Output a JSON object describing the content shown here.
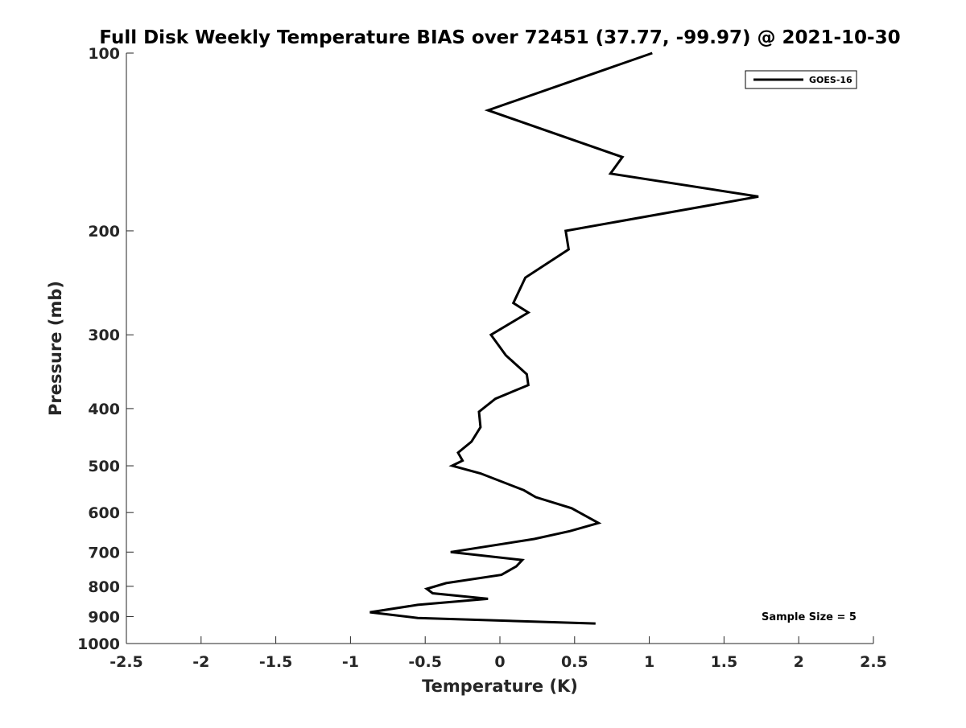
{
  "chart_data": {
    "type": "line",
    "title": "Full Disk Weekly Temperature BIAS over 72451 (37.77, -99.97) @ 2021-10-30",
    "xlabel": "Temperature (K)",
    "ylabel": "Pressure (mb)",
    "xlim": [
      -2.5,
      2.5
    ],
    "ylim": [
      100,
      1000
    ],
    "yscale": "log",
    "yreversed": true,
    "grid": false,
    "legend_position": "top-right",
    "x_ticks": [
      "-2.5",
      "-2",
      "-1.5",
      "-1",
      "-0.5",
      "0",
      "0.5",
      "1",
      "1.5",
      "2",
      "2.5"
    ],
    "y_ticks": [
      "100",
      "200",
      "300",
      "400",
      "500",
      "600",
      "700",
      "800",
      "900",
      "1000"
    ],
    "annotation": "Sample Size = 5",
    "series": [
      {
        "name": "GOES-16",
        "color": "#000000",
        "points": [
          {
            "x": 1.02,
            "y": 100
          },
          {
            "x": -0.08,
            "y": 125
          },
          {
            "x": 0.82,
            "y": 150
          },
          {
            "x": 0.74,
            "y": 160
          },
          {
            "x": 1.73,
            "y": 175
          },
          {
            "x": 0.44,
            "y": 200
          },
          {
            "x": 0.46,
            "y": 215
          },
          {
            "x": 0.17,
            "y": 240
          },
          {
            "x": 0.09,
            "y": 265
          },
          {
            "x": 0.19,
            "y": 275
          },
          {
            "x": -0.06,
            "y": 300
          },
          {
            "x": 0.04,
            "y": 325
          },
          {
            "x": 0.18,
            "y": 350
          },
          {
            "x": 0.19,
            "y": 365
          },
          {
            "x": -0.03,
            "y": 385
          },
          {
            "x": -0.14,
            "y": 405
          },
          {
            "x": -0.13,
            "y": 430
          },
          {
            "x": -0.19,
            "y": 455
          },
          {
            "x": -0.28,
            "y": 475
          },
          {
            "x": -0.25,
            "y": 490
          },
          {
            "x": -0.32,
            "y": 500
          },
          {
            "x": -0.13,
            "y": 515
          },
          {
            "x": 0.16,
            "y": 550
          },
          {
            "x": 0.24,
            "y": 565
          },
          {
            "x": 0.48,
            "y": 590
          },
          {
            "x": 0.66,
            "y": 625
          },
          {
            "x": 0.47,
            "y": 645
          },
          {
            "x": 0.23,
            "y": 665
          },
          {
            "x": -0.33,
            "y": 700
          },
          {
            "x": 0.15,
            "y": 722
          },
          {
            "x": 0.11,
            "y": 740
          },
          {
            "x": 0.01,
            "y": 765
          },
          {
            "x": -0.36,
            "y": 790
          },
          {
            "x": -0.49,
            "y": 808
          },
          {
            "x": -0.45,
            "y": 822
          },
          {
            "x": -0.08,
            "y": 840
          },
          {
            "x": -0.55,
            "y": 860
          },
          {
            "x": -0.87,
            "y": 885
          },
          {
            "x": -0.55,
            "y": 905
          },
          {
            "x": 0.64,
            "y": 925
          }
        ]
      }
    ]
  }
}
